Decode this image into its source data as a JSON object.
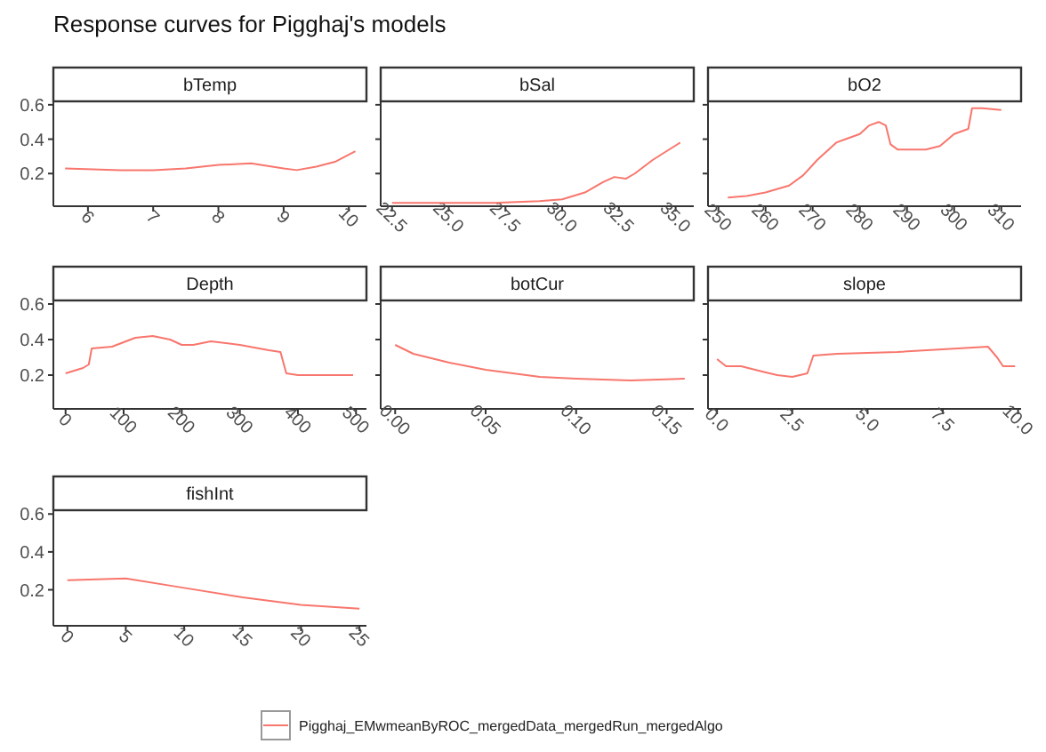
{
  "chart_data": [
    {
      "type": "line",
      "title": "Response curves for Pigghaj's models",
      "subtitle": "bTemp",
      "legend": "bottom",
      "xlim": [
        5.47,
        10.27
      ],
      "xticks": [
        6,
        7,
        8,
        9,
        10
      ],
      "ylim": [
        0.01,
        0.62
      ],
      "yticks": [
        0.2,
        0.4,
        0.6
      ],
      "series": [
        {
          "name": "Pigghaj_EMwmeanByROC_mergedData_mergedRun_mergedAlgo",
          "color": "#f8766d",
          "x": [
            5.65,
            6.5,
            7,
            7.5,
            8,
            8.5,
            9,
            9.2,
            9.5,
            9.8,
            10.1
          ],
          "values": [
            0.23,
            0.22,
            0.22,
            0.23,
            0.25,
            0.26,
            0.23,
            0.22,
            0.24,
            0.27,
            0.33
          ]
        }
      ]
    },
    {
      "type": "line",
      "subtitle": "bSal",
      "tick_labels": "x",
      "xlim": [
        22.0,
        35.8
      ],
      "xticks": [
        {
          "value": 22.5,
          "label": "22.5"
        },
        {
          "value": 25,
          "label": "25.0"
        },
        {
          "value": 27.5,
          "label": "27.5"
        },
        {
          "value": 30,
          "label": "30.0"
        },
        {
          "value": 32.5,
          "label": "32.5"
        },
        {
          "value": 35,
          "label": "35.0"
        }
      ],
      "ylim": [
        0.01,
        0.62
      ],
      "yticks": [
        0.2,
        0.4,
        0.6
      ],
      "series": [
        {
          "color": "#f8766d",
          "x": [
            22.5,
            25,
            27,
            29,
            30,
            31,
            31.8,
            32.3,
            32.8,
            33.2,
            34,
            35.2
          ],
          "values": [
            0.03,
            0.03,
            0.03,
            0.04,
            0.05,
            0.09,
            0.15,
            0.18,
            0.17,
            0.2,
            0.28,
            0.38
          ]
        }
      ]
    },
    {
      "type": "line",
      "subtitle": "bO2",
      "tick_labels": "x",
      "xlim": [
        247.8,
        314.2
      ],
      "xticks": [
        250,
        260,
        270,
        280,
        290,
        300,
        310
      ],
      "ylim": [
        0.01,
        0.62
      ],
      "yticks": [
        0.2,
        0.4,
        0.6
      ],
      "series": [
        {
          "color": "#f8766d",
          "x": [
            252,
            256,
            260,
            265,
            268,
            271,
            275,
            277,
            280,
            282,
            284,
            285.5,
            286.5,
            288,
            294,
            297,
            300,
            303,
            303.8,
            306,
            310
          ],
          "values": [
            0.06,
            0.07,
            0.09,
            0.13,
            0.19,
            0.28,
            0.38,
            0.4,
            0.43,
            0.48,
            0.5,
            0.48,
            0.37,
            0.34,
            0.34,
            0.36,
            0.43,
            0.46,
            0.58,
            0.58,
            0.57
          ]
        }
      ]
    },
    {
      "type": "line",
      "subtitle": "Depth",
      "xlim": [
        -21,
        518
      ],
      "xticks": [
        0,
        100,
        200,
        300,
        400,
        500
      ],
      "ylim": [
        0.01,
        0.62
      ],
      "yticks": [
        0.2,
        0.4,
        0.6
      ],
      "series": [
        {
          "color": "#f8766d",
          "x": [
            0,
            30,
            40,
            45,
            80,
            120,
            150,
            180,
            200,
            220,
            250,
            300,
            350,
            370,
            380,
            400,
            495
          ],
          "values": [
            0.21,
            0.24,
            0.26,
            0.35,
            0.36,
            0.41,
            0.42,
            0.4,
            0.37,
            0.37,
            0.39,
            0.37,
            0.34,
            0.33,
            0.21,
            0.2,
            0.2
          ]
        }
      ]
    },
    {
      "type": "line",
      "subtitle": "botCur",
      "tick_labels": "x",
      "xlim": [
        -0.008,
        0.165
      ],
      "xticks": [
        {
          "value": 0,
          "label": "0.00"
        },
        {
          "value": 0.05,
          "label": "0.05"
        },
        {
          "value": 0.1,
          "label": "0.10"
        },
        {
          "value": 0.15,
          "label": "0.15"
        }
      ],
      "ylim": [
        0.01,
        0.62
      ],
      "yticks": [
        0.2,
        0.4,
        0.6
      ],
      "series": [
        {
          "color": "#f8766d",
          "x": [
            0,
            0.01,
            0.03,
            0.05,
            0.08,
            0.1,
            0.13,
            0.16
          ],
          "values": [
            0.37,
            0.32,
            0.27,
            0.23,
            0.19,
            0.18,
            0.17,
            0.18
          ]
        }
      ]
    },
    {
      "type": "line",
      "subtitle": "slope",
      "tick_labels": "x",
      "xlim": [
        -0.3,
        10.1
      ],
      "xticks": [
        {
          "value": 0,
          "label": "0.0"
        },
        {
          "value": 2.5,
          "label": "2.5"
        },
        {
          "value": 5,
          "label": "5.0"
        },
        {
          "value": 7.5,
          "label": "7.5"
        },
        {
          "value": 10,
          "label": "10.0"
        }
      ],
      "ylim": [
        0.01,
        0.62
      ],
      "yticks": [
        0.2,
        0.4,
        0.6
      ],
      "series": [
        {
          "color": "#f8766d",
          "x": [
            0,
            0.3,
            0.8,
            1.5,
            2,
            2.5,
            3,
            3.2,
            4,
            6,
            8,
            9,
            9.3,
            9.5,
            9.9
          ],
          "values": [
            0.29,
            0.25,
            0.25,
            0.22,
            0.2,
            0.19,
            0.21,
            0.31,
            0.32,
            0.33,
            0.35,
            0.36,
            0.3,
            0.25,
            0.25
          ]
        }
      ]
    },
    {
      "type": "line",
      "subtitle": "fishInt",
      "xlim": [
        -1.2,
        25.6
      ],
      "xticks": [
        0,
        5,
        10,
        15,
        20,
        25
      ],
      "ylim": [
        0.01,
        0.62
      ],
      "yticks": [
        0.2,
        0.4,
        0.6
      ],
      "series": [
        {
          "color": "#f8766d",
          "x": [
            0,
            5,
            10,
            15,
            20,
            25
          ],
          "values": [
            0.25,
            0.26,
            0.21,
            0.16,
            0.12,
            0.1
          ]
        }
      ]
    }
  ]
}
